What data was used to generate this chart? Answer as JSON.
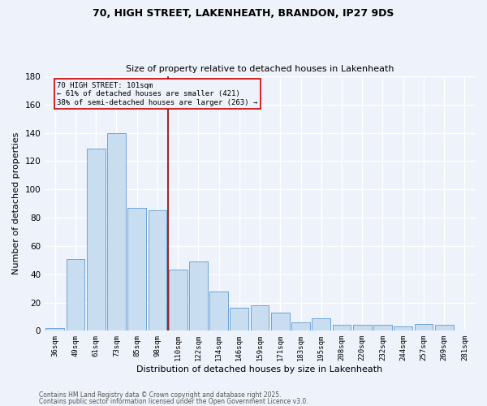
{
  "title_line1": "70, HIGH STREET, LAKENHEATH, BRANDON, IP27 9DS",
  "title_line2": "Size of property relative to detached houses in Lakenheath",
  "xlabel": "Distribution of detached houses by size in Lakenheath",
  "ylabel": "Number of detached properties",
  "categories": [
    "36sqm",
    "49sqm",
    "61sqm",
    "73sqm",
    "85sqm",
    "98sqm",
    "110sqm",
    "122sqm",
    "134sqm",
    "146sqm",
    "159sqm",
    "171sqm",
    "183sqm",
    "195sqm",
    "208sqm",
    "220sqm",
    "232sqm",
    "244sqm",
    "257sqm",
    "269sqm",
    "281sqm"
  ],
  "values": [
    2,
    51,
    129,
    140,
    87,
    85,
    43,
    49,
    28,
    16,
    18,
    13,
    6,
    9,
    4,
    4,
    4,
    3,
    5,
    4,
    0
  ],
  "bar_color": "#c9ddf0",
  "bar_edge_color": "#5b9bd5",
  "vline_x": 5.5,
  "vline_color": "#8b0000",
  "annotation_text": "70 HIGH STREET: 101sqm\n← 61% of detached houses are smaller (421)\n38% of semi-detached houses are larger (263) →",
  "annotation_box_edgecolor": "#cc0000",
  "ylim": [
    0,
    180
  ],
  "yticks": [
    0,
    20,
    40,
    60,
    80,
    100,
    120,
    140,
    160,
    180
  ],
  "footnote1": "Contains HM Land Registry data © Crown copyright and database right 2025.",
  "footnote2": "Contains public sector information licensed under the Open Government Licence v3.0.",
  "background_color": "#eef2fa",
  "grid_color": "#ffffff"
}
